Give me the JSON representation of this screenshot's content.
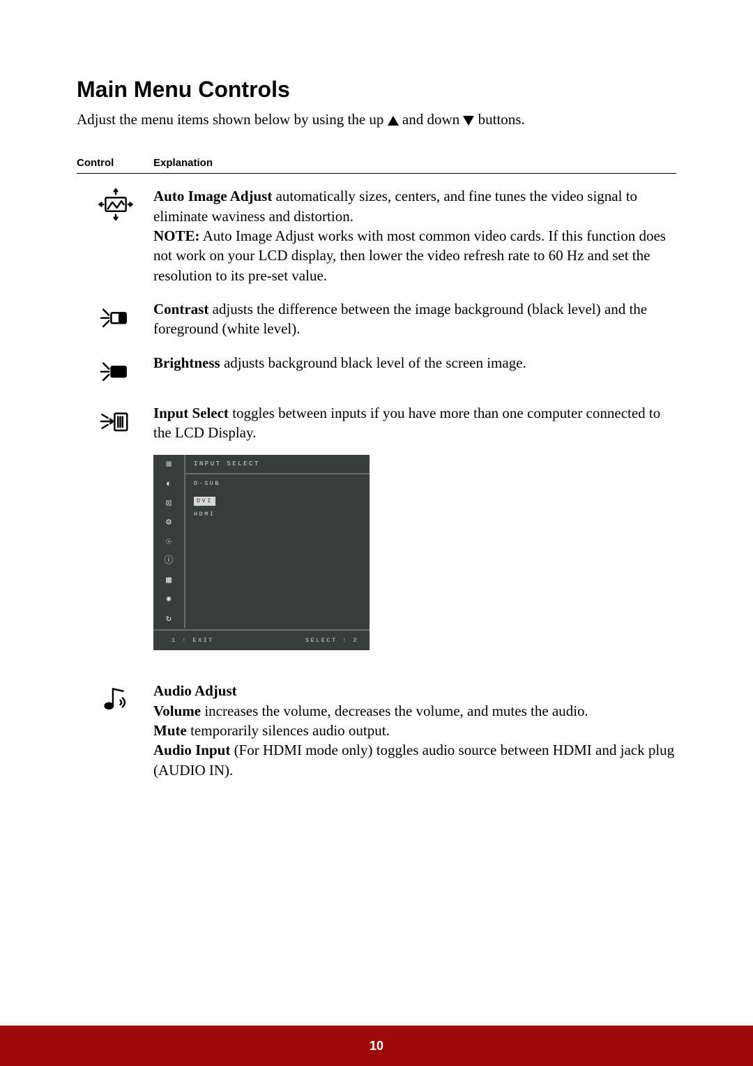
{
  "title": "Main Menu Controls",
  "intro_pre": "Adjust the menu items shown below by using the up ",
  "intro_mid": " and down ",
  "intro_post": " buttons.",
  "headers": {
    "control": "Control",
    "explanation": "Explanation"
  },
  "row1": {
    "b1": "Auto Image Adjust",
    "t1": " automatically sizes, centers, and fine tunes the video signal to eliminate waviness and distortion.",
    "b2": "NOTE:",
    "t2": " Auto Image Adjust works with most common video cards. If this function does not work on your LCD display, then lower the video refresh rate to 60 Hz and set the resolution to its pre-set value."
  },
  "row2": {
    "b1": "Contrast",
    "t1": " adjusts the difference between the image background  (black level) and the foreground (white level)."
  },
  "row3": {
    "b1": "Brightness",
    "t1": " adjusts background black level of the screen image."
  },
  "row4": {
    "b1": "Input Select",
    "t1": " toggles between inputs if you have more than one computer connected to the LCD Display."
  },
  "osd": {
    "title": "INPUT SELECT",
    "items": [
      "D-SUB",
      "DVI",
      "HDMI"
    ],
    "selected_index": 1,
    "footer_left": "1 : EXIT",
    "footer_right": "SELECT : 2",
    "side_icons": [
      "⊞",
      "◐",
      "⊡",
      "⚙",
      "☉",
      "ⓘ",
      "▦",
      "✺",
      "↻"
    ],
    "colors": {
      "bg": "#3a3c3b",
      "line": "#6a6b6a",
      "text": "#d8d8d8"
    }
  },
  "row5": {
    "heading": "Audio Adjust",
    "b1": "Volume",
    "t1": " increases the volume, decreases the volume, and mutes the audio.",
    "b2": "Mute",
    "t2": " temporarily silences audio output.",
    "b3": "Audio Input",
    "t3": " (For HDMI mode only) toggles audio source between HDMI and jack plug (AUDIO IN)."
  },
  "page_number": "10",
  "footer_bg": "#9e0a0a"
}
